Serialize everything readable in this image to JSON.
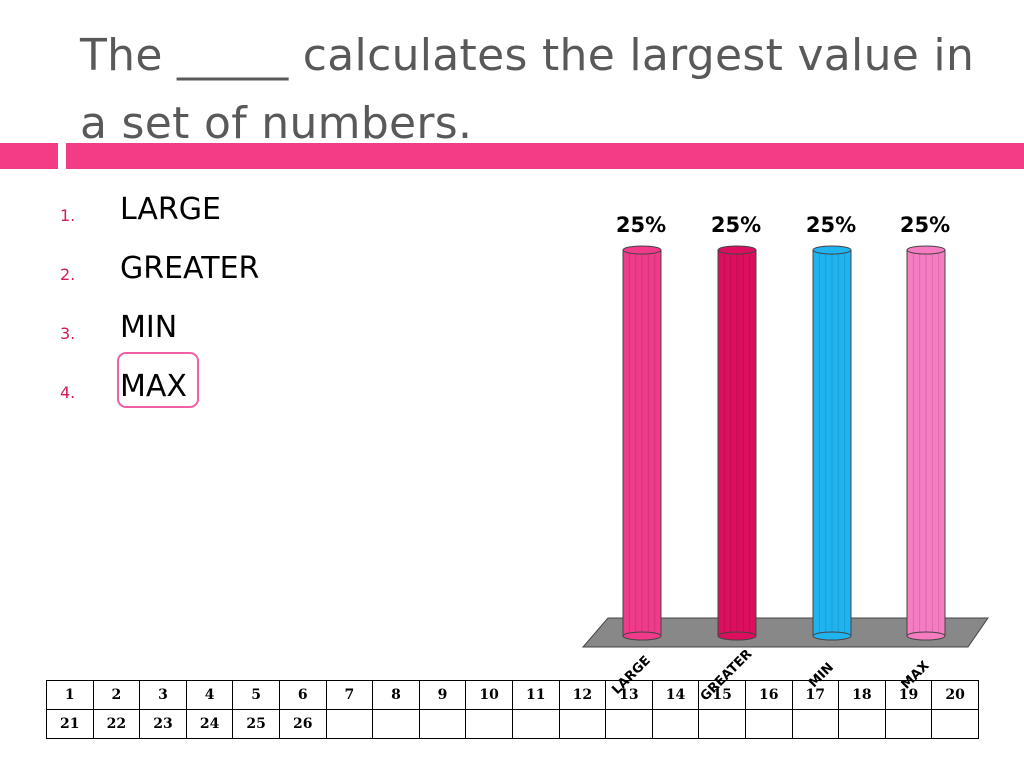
{
  "slide": {
    "title": "The _____ calculates the largest value in a set of numbers.",
    "options": [
      {
        "number": "1.",
        "text": "LARGE"
      },
      {
        "number": "2.",
        "text": "GREATER"
      },
      {
        "number": "3.",
        "text": "MIN"
      },
      {
        "number": "4.",
        "text": "MAX"
      }
    ],
    "highlighted_option": "MAX",
    "colors": {
      "accent": "#f23c86",
      "number": "#d6185e",
      "highlight": "#f35fa4"
    }
  },
  "chart_data": {
    "type": "bar",
    "categories": [
      "LARGE",
      "GREATER",
      "MIN",
      "MAX"
    ],
    "values": [
      25,
      25,
      25,
      25
    ],
    "data_labels": [
      "25%",
      "25%",
      "25%",
      "25%"
    ],
    "colors": [
      "#f03a8a",
      "#dc0f5e",
      "#1fb3f0",
      "#f57cc0"
    ],
    "ylim": [
      0,
      25
    ],
    "grid": false,
    "legend": "none"
  },
  "response_grid": {
    "rows": [
      [
        "1",
        "2",
        "3",
        "4",
        "5",
        "6",
        "7",
        "8",
        "9",
        "10",
        "11",
        "12",
        "13",
        "14",
        "15",
        "16",
        "17",
        "18",
        "19",
        "20"
      ],
      [
        "21",
        "22",
        "23",
        "24",
        "25",
        "26",
        "",
        "",
        "",
        "",
        "",
        "",
        "",
        "",
        "",
        "",
        "",
        "",
        "",
        ""
      ]
    ]
  }
}
